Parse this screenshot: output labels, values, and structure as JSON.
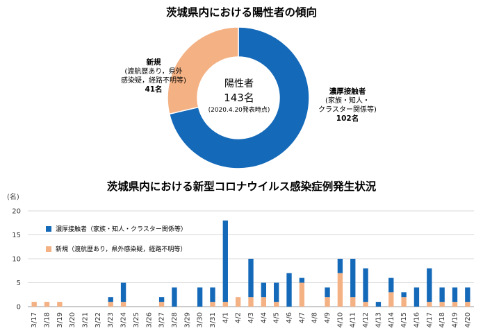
{
  "chart_data": [
    {
      "type": "pie",
      "variant": "donut",
      "title": "茨城県内における陽性者の傾向",
      "center": {
        "label": "陽性者",
        "total": "143名",
        "date": "(2020.4.20発表時点)"
      },
      "slices": [
        {
          "name": "濃厚接触者",
          "detail_lines": [
            "(家族・知人・",
            "クラスター関係等)"
          ],
          "value": 102,
          "value_label": "102名",
          "color": "#1469b8"
        },
        {
          "name": "新規",
          "detail_lines": [
            "(渡航歴あり，県外",
            "感染疑，経路不明等)"
          ],
          "value": 41,
          "value_label": "41名",
          "color": "#f4b183"
        }
      ]
    },
    {
      "type": "bar",
      "stacked": true,
      "title": "茨城県内における新型コロナウイルス感染症例発生状況",
      "ylabel": "(名)",
      "ylim": [
        0,
        20
      ],
      "yticks": [
        0,
        5,
        10,
        15,
        20
      ],
      "grid": true,
      "legend_position": "top-left",
      "categories": [
        "3/17",
        "3/18",
        "3/19",
        "3/20",
        "3/21",
        "3/22",
        "3/23",
        "3/24",
        "3/25",
        "3/26",
        "3/27",
        "3/28",
        "3/29",
        "3/30",
        "3/31",
        "4/1",
        "4/2",
        "4/3",
        "4/4",
        "4/5",
        "4/6",
        "4/7",
        "4/8",
        "4/9",
        "4/10",
        "4/11",
        "4/12",
        "4/13",
        "4/14",
        "4/15",
        "4/16",
        "4/17",
        "4/18",
        "4/19",
        "4/20"
      ],
      "series": [
        {
          "name": "新規（渡航歴あり，県外感染疑，経路不明等）",
          "color": "#f4b183",
          "values": [
            1,
            1,
            1,
            0,
            0,
            0,
            1,
            1,
            0,
            0,
            1,
            0,
            0,
            0,
            1,
            1,
            2,
            2,
            2,
            1,
            0,
            5,
            0,
            2,
            7,
            2,
            1,
            0,
            3,
            2,
            0,
            1,
            1,
            1,
            1
          ]
        },
        {
          "name": "濃厚接触者（家族・知人・クラスター関係等）",
          "color": "#1469b8",
          "values": [
            0,
            0,
            0,
            0,
            0,
            0,
            1,
            4,
            0,
            0,
            1,
            4,
            0,
            4,
            3,
            17,
            0,
            8,
            3,
            4,
            7,
            1,
            0,
            2,
            3,
            8,
            7,
            1,
            3,
            1,
            4,
            7,
            3,
            3,
            3
          ]
        }
      ]
    }
  ]
}
